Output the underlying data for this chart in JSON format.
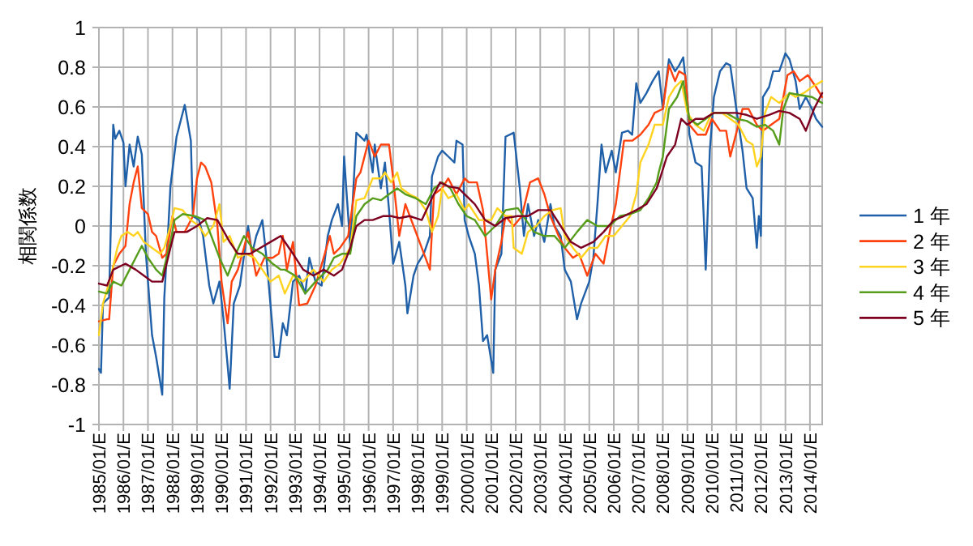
{
  "chart_data": {
    "type": "line",
    "ylabel": "相関係数",
    "xlim": [
      "1985-01",
      "2014-07"
    ],
    "ylim": [
      -1,
      1
    ],
    "yticks": [
      {
        "value": -1,
        "label": "-1"
      },
      {
        "value": -0.8,
        "label": "-0.8"
      },
      {
        "value": -0.6,
        "label": "-0.6"
      },
      {
        "value": -0.4,
        "label": "-0.4"
      },
      {
        "value": -0.2,
        "label": "-0.2"
      },
      {
        "value": 0,
        "label": "0"
      },
      {
        "value": 0.2,
        "label": "0.2"
      },
      {
        "value": 0.4,
        "label": "0.4"
      },
      {
        "value": 0.6,
        "label": "0.6"
      },
      {
        "value": 0.8,
        "label": "0.8"
      },
      {
        "value": 1,
        "label": "1"
      }
    ],
    "xticks": [
      {
        "value": "1985-01",
        "label": "1985/01/E"
      },
      {
        "value": "1986-01",
        "label": "1986/01/E"
      },
      {
        "value": "1987-01",
        "label": "1987/01/E"
      },
      {
        "value": "1988-01",
        "label": "1988/01/E"
      },
      {
        "value": "1989-01",
        "label": "1989/01/E"
      },
      {
        "value": "1990-01",
        "label": "1990/01/E"
      },
      {
        "value": "1991-01",
        "label": "1991/01/E"
      },
      {
        "value": "1992-01",
        "label": "1992/01/E"
      },
      {
        "value": "1993-01",
        "label": "1993/01/E"
      },
      {
        "value": "1994-01",
        "label": "1994/01/E"
      },
      {
        "value": "1995-01",
        "label": "1995/01/E"
      },
      {
        "value": "1996-01",
        "label": "1996/01/E"
      },
      {
        "value": "1997-01",
        "label": "1997/01/E"
      },
      {
        "value": "1998-01",
        "label": "1998/01/E"
      },
      {
        "value": "1999-01",
        "label": "1999/01/E"
      },
      {
        "value": "2000-01",
        "label": "2000/01/E"
      },
      {
        "value": "2001-01",
        "label": "2001/01/E"
      },
      {
        "value": "2002-01",
        "label": "2002/01/E"
      },
      {
        "value": "2003-01",
        "label": "2003/01/E"
      },
      {
        "value": "2004-01",
        "label": "2004/01/E"
      },
      {
        "value": "2005-01",
        "label": "2005/01/E"
      },
      {
        "value": "2006-01",
        "label": "2006/01/E"
      },
      {
        "value": "2007-01",
        "label": "2007/01/E"
      },
      {
        "value": "2008-01",
        "label": "2008/01/E"
      },
      {
        "value": "2009-01",
        "label": "2009/01/E"
      },
      {
        "value": "2010-01",
        "label": "2010/01/E"
      },
      {
        "value": "2011-01",
        "label": "2011/01/E"
      },
      {
        "value": "2012-01",
        "label": "2012/01/E"
      },
      {
        "value": "2013-01",
        "label": "2013/01/E"
      },
      {
        "value": "2014-01",
        "label": "2014/01/E"
      }
    ],
    "grid": true,
    "legend": "right",
    "marker": "none",
    "line_style": "solid",
    "series": [
      {
        "name": "1 年",
        "color": "#2060a8",
        "x": [
          "1985-01",
          "1985-02",
          "1985-03",
          "1985-06",
          "1985-08",
          "1985-09",
          "1985-11",
          "1986-01",
          "1986-02",
          "1986-04",
          "1986-06",
          "1986-08",
          "1986-10",
          "1986-12",
          "1987-03",
          "1987-05",
          "1987-08",
          "1987-09",
          "1987-11",
          "1987-12",
          "1988-03",
          "1988-07",
          "1988-10",
          "1988-11",
          "1989-02",
          "1989-04",
          "1989-07",
          "1989-09",
          "1989-12",
          "1990-02",
          "1990-05",
          "1990-07",
          "1990-10",
          "1991-02",
          "1991-04",
          "1991-06",
          "1991-09",
          "1991-11",
          "1992-02",
          "1992-03",
          "1992-05",
          "1992-07",
          "1992-09",
          "1992-12",
          "1993-03",
          "1993-06",
          "1993-08",
          "1993-11",
          "1994-02",
          "1994-05",
          "1994-07",
          "1994-10",
          "1994-12",
          "1995-01",
          "1995-03",
          "1995-04",
          "1995-07",
          "1995-11",
          "1995-12",
          "1996-03",
          "1996-04",
          "1996-07",
          "1996-09",
          "1996-11",
          "1997-01",
          "1997-04",
          "1997-07",
          "1997-08",
          "1997-11",
          "1998-01",
          "1998-04",
          "1998-07",
          "1998-08",
          "1998-11",
          "1999-01",
          "1999-04",
          "1999-07",
          "1999-08",
          "1999-11",
          "1999-12",
          "2000-02",
          "2000-05",
          "2000-07",
          "2000-09",
          "2000-11",
          "2001-02",
          "2001-03",
          "2001-06",
          "2001-08",
          "2001-12",
          "2002-03",
          "2002-05",
          "2002-07",
          "2002-10",
          "2002-12",
          "2003-03",
          "2003-06",
          "2003-08",
          "2003-11",
          "2004-01",
          "2004-04",
          "2004-07",
          "2004-09",
          "2005-01",
          "2005-03",
          "2005-05",
          "2005-07",
          "2005-09",
          "2005-12",
          "2006-02",
          "2006-05",
          "2006-08",
          "2006-10",
          "2006-12",
          "2007-02",
          "2007-05",
          "2007-08",
          "2007-11",
          "2008-01",
          "2008-04",
          "2008-07",
          "2008-09",
          "2008-11",
          "2009-01",
          "2009-02",
          "2009-05",
          "2009-08",
          "2009-09",
          "2009-10",
          "2009-12",
          "2010-02",
          "2010-05",
          "2010-08",
          "2010-10",
          "2011-01",
          "2011-04",
          "2011-06",
          "2011-09",
          "2011-11",
          "2011-12",
          "2012-01",
          "2012-02",
          "2012-05",
          "2012-07",
          "2012-10",
          "2013-01",
          "2013-03",
          "2013-06",
          "2013-08",
          "2013-11",
          "2014-02",
          "2014-04",
          "2014-07"
        ],
        "values": [
          -0.72,
          -0.74,
          -0.39,
          -0.36,
          0.51,
          0.44,
          0.48,
          0.42,
          0.2,
          0.41,
          0.3,
          0.45,
          0.36,
          -0.14,
          -0.55,
          -0.66,
          -0.85,
          -0.36,
          0.0,
          0.2,
          0.45,
          0.61,
          0.43,
          0.05,
          0.03,
          -0.05,
          -0.3,
          -0.39,
          -0.28,
          -0.47,
          -0.82,
          -0.39,
          -0.3,
          0.0,
          -0.14,
          -0.05,
          0.03,
          -0.16,
          -0.52,
          -0.66,
          -0.66,
          -0.49,
          -0.55,
          -0.28,
          -0.25,
          -0.34,
          -0.16,
          -0.28,
          -0.3,
          -0.05,
          0.03,
          0.11,
          0.0,
          0.35,
          0.05,
          -0.11,
          0.47,
          0.43,
          0.46,
          0.27,
          0.41,
          0.19,
          0.32,
          0.08,
          -0.19,
          -0.08,
          -0.3,
          -0.44,
          -0.25,
          -0.19,
          -0.14,
          -0.05,
          0.25,
          0.35,
          0.38,
          0.35,
          0.32,
          0.43,
          0.41,
          0.03,
          -0.05,
          -0.14,
          -0.3,
          -0.58,
          -0.55,
          -0.74,
          -0.22,
          -0.14,
          0.45,
          0.47,
          0.19,
          -0.05,
          0.11,
          -0.05,
          0.03,
          -0.08,
          0.11,
          0.0,
          -0.05,
          -0.22,
          -0.28,
          -0.47,
          -0.39,
          -0.28,
          -0.16,
          0.11,
          0.41,
          0.27,
          0.38,
          0.27,
          0.47,
          0.48,
          0.46,
          0.72,
          0.62,
          0.67,
          0.73,
          0.78,
          0.59,
          0.84,
          0.78,
          0.81,
          0.85,
          0.65,
          0.46,
          0.32,
          0.3,
          0.05,
          -0.22,
          0.38,
          0.65,
          0.78,
          0.82,
          0.81,
          0.59,
          0.38,
          0.19,
          0.14,
          -0.11,
          0.05,
          -0.05,
          0.65,
          0.7,
          0.78,
          0.78,
          0.87,
          0.84,
          0.73,
          0.59,
          0.65,
          0.59,
          0.54,
          0.5
        ]
      },
      {
        "name": "2 年",
        "color": "#ff420e",
        "x": [
          "1985-01",
          "1985-05",
          "1985-06",
          "1985-08",
          "1985-11",
          "1986-02",
          "1986-04",
          "1986-06",
          "1986-08",
          "1986-10",
          "1987-01",
          "1987-03",
          "1987-05",
          "1987-08",
          "1987-10",
          "1988-01",
          "1988-03",
          "1988-07",
          "1988-11",
          "1989-01",
          "1989-03",
          "1989-05",
          "1989-08",
          "1989-11",
          "1990-01",
          "1990-04",
          "1990-06",
          "1990-09",
          "1990-12",
          "1991-02",
          "1991-06",
          "1991-10",
          "1992-02",
          "1992-05",
          "1992-07",
          "1992-09",
          "1992-12",
          "1993-03",
          "1993-07",
          "1993-11",
          "1994-03",
          "1994-06",
          "1994-08",
          "1994-11",
          "1995-03",
          "1995-07",
          "1995-09",
          "1996-01",
          "1996-04",
          "1996-07",
          "1996-11",
          "1997-01",
          "1997-04",
          "1997-07",
          "1997-11",
          "1998-03",
          "1998-07",
          "1998-09",
          "1999-01",
          "1999-04",
          "1999-08",
          "1999-12",
          "2000-02",
          "2000-06",
          "2000-09",
          "2000-11",
          "2001-01",
          "2001-03",
          "2001-06",
          "2001-08",
          "2001-12",
          "2002-04",
          "2002-08",
          "2002-12",
          "2003-03",
          "2003-06",
          "2003-10",
          "2004-01",
          "2004-05",
          "2004-08",
          "2004-12",
          "2005-04",
          "2005-08",
          "2005-11",
          "2006-02",
          "2006-06",
          "2006-10",
          "2007-02",
          "2007-06",
          "2007-09",
          "2008-01",
          "2008-04",
          "2008-07",
          "2008-09",
          "2008-12",
          "2009-02",
          "2009-06",
          "2009-10",
          "2010-01",
          "2010-05",
          "2010-08",
          "2010-10",
          "2010-12",
          "2011-04",
          "2011-07",
          "2011-11",
          "2012-02",
          "2012-06",
          "2012-10",
          "2013-02",
          "2013-05",
          "2013-08",
          "2013-12",
          "2014-04",
          "2014-07"
        ],
        "values": [
          -0.48,
          -0.47,
          -0.47,
          -0.2,
          -0.14,
          -0.1,
          0.11,
          0.22,
          0.3,
          0.09,
          0.06,
          -0.03,
          -0.05,
          -0.16,
          -0.14,
          0.05,
          -0.03,
          -0.03,
          0.05,
          0.24,
          0.32,
          0.3,
          0.22,
          0.0,
          -0.28,
          -0.49,
          -0.28,
          -0.22,
          -0.11,
          -0.03,
          -0.25,
          -0.16,
          -0.16,
          -0.14,
          -0.05,
          -0.22,
          -0.08,
          -0.4,
          -0.39,
          -0.3,
          -0.16,
          -0.05,
          -0.14,
          -0.11,
          -0.05,
          0.24,
          0.27,
          0.43,
          0.35,
          0.41,
          0.41,
          0.24,
          -0.05,
          0.11,
          0.0,
          -0.11,
          -0.22,
          0.16,
          0.19,
          0.24,
          0.16,
          0.24,
          0.22,
          0.22,
          0.08,
          -0.14,
          -0.37,
          -0.22,
          -0.08,
          0.05,
          0.0,
          0.05,
          0.22,
          0.24,
          0.16,
          0.05,
          -0.05,
          -0.11,
          -0.16,
          -0.14,
          -0.25,
          -0.14,
          -0.19,
          -0.03,
          0.11,
          0.43,
          0.43,
          0.46,
          0.51,
          0.57,
          0.59,
          0.81,
          0.73,
          0.78,
          0.76,
          0.51,
          0.46,
          0.46,
          0.54,
          0.48,
          0.48,
          0.35,
          0.43,
          0.59,
          0.59,
          0.51,
          0.48,
          0.51,
          0.54,
          0.76,
          0.78,
          0.73,
          0.76,
          0.7,
          0.65
        ]
      },
      {
        "name": "3 年",
        "color": "#ffd320",
        "x": [
          "1985-01",
          "1985-03",
          "1985-07",
          "1985-10",
          "1985-12",
          "1986-03",
          "1986-06",
          "1986-08",
          "1986-11",
          "1987-03",
          "1987-07",
          "1987-09",
          "1987-12",
          "1988-02",
          "1988-06",
          "1988-10",
          "1989-02",
          "1989-05",
          "1989-09",
          "1989-12",
          "1990-02",
          "1990-05",
          "1990-09",
          "1991-01",
          "1991-05",
          "1991-09",
          "1992-01",
          "1992-05",
          "1992-08",
          "1992-12",
          "1993-05",
          "1993-10",
          "1994-03",
          "1994-07",
          "1994-11",
          "1995-04",
          "1995-07",
          "1995-11",
          "1996-03",
          "1996-07",
          "1996-09",
          "1996-12",
          "1997-03",
          "1997-05",
          "1997-09",
          "1998-01",
          "1998-05",
          "1998-08",
          "1998-11",
          "1999-01",
          "1999-04",
          "1999-08",
          "1999-12",
          "2000-02",
          "2000-07",
          "2001-01",
          "2001-04",
          "2001-08",
          "2001-11",
          "2001-12",
          "2002-04",
          "2002-07",
          "2002-11",
          "2003-03",
          "2003-07",
          "2003-11",
          "2004-01",
          "2004-05",
          "2004-09",
          "2005-01",
          "2005-05",
          "2005-09",
          "2006-01",
          "2006-05",
          "2006-09",
          "2006-12",
          "2007-02",
          "2007-06",
          "2007-09",
          "2008-01",
          "2008-04",
          "2008-07",
          "2008-10",
          "2009-01",
          "2009-05",
          "2009-09",
          "2010-01",
          "2010-06",
          "2010-10",
          "2011-02",
          "2011-06",
          "2011-09",
          "2011-11",
          "2012-01",
          "2012-03",
          "2012-06",
          "2012-10",
          "2013-03",
          "2013-06",
          "2013-10",
          "2014-02",
          "2014-07"
        ],
        "values": [
          -0.55,
          -0.39,
          -0.25,
          -0.11,
          -0.05,
          -0.03,
          -0.05,
          -0.03,
          -0.08,
          -0.11,
          -0.14,
          -0.11,
          0.0,
          0.09,
          0.08,
          0.03,
          0.0,
          -0.05,
          0.0,
          0.11,
          -0.08,
          -0.05,
          -0.16,
          -0.14,
          -0.16,
          -0.22,
          -0.28,
          -0.25,
          -0.34,
          -0.25,
          -0.28,
          -0.22,
          -0.28,
          -0.22,
          -0.19,
          -0.11,
          0.13,
          0.14,
          0.24,
          0.24,
          0.27,
          0.22,
          0.27,
          0.19,
          0.16,
          0.14,
          0.08,
          -0.03,
          0.05,
          0.19,
          0.14,
          0.16,
          0.08,
          0.11,
          0.03,
          0.03,
          0.09,
          0.05,
          0.05,
          -0.11,
          -0.14,
          -0.03,
          0.0,
          0.05,
          0.08,
          0.09,
          -0.05,
          -0.11,
          -0.16,
          -0.11,
          -0.11,
          -0.05,
          -0.05,
          0.0,
          0.05,
          0.16,
          0.32,
          0.41,
          0.51,
          0.51,
          0.65,
          0.7,
          0.73,
          0.57,
          0.51,
          0.48,
          0.57,
          0.57,
          0.54,
          0.51,
          0.43,
          0.41,
          0.3,
          0.35,
          0.57,
          0.65,
          0.62,
          0.67,
          0.65,
          0.67,
          0.7,
          0.73
        ]
      },
      {
        "name": "4 年",
        "color": "#579d1c",
        "x": [
          "1985-01",
          "1985-05",
          "1985-08",
          "1985-12",
          "1986-04",
          "1986-08",
          "1986-10",
          "1987-01",
          "1987-05",
          "1987-08",
          "1987-12",
          "1988-02",
          "1988-06",
          "1988-12",
          "1989-05",
          "1989-08",
          "1989-12",
          "1990-04",
          "1990-08",
          "1990-12",
          "1991-04",
          "1991-09",
          "1992-02",
          "1992-06",
          "1992-08",
          "1993-01",
          "1993-06",
          "1993-11",
          "1994-05",
          "1994-08",
          "1994-12",
          "1995-04",
          "1995-07",
          "1995-11",
          "1996-03",
          "1996-07",
          "1996-11",
          "1997-03",
          "1997-07",
          "1997-12",
          "1998-05",
          "1998-09",
          "1999-01",
          "1999-05",
          "1999-09",
          "2000-01",
          "2000-05",
          "2000-10",
          "2001-03",
          "2001-08",
          "2002-02",
          "2002-06",
          "2002-10",
          "2003-03",
          "2003-08",
          "2004-01",
          "2004-07",
          "2004-12",
          "2005-05",
          "2005-11",
          "2006-04",
          "2006-09",
          "2007-02",
          "2007-06",
          "2007-10",
          "2007-11",
          "2008-01",
          "2008-04",
          "2008-08",
          "2008-11",
          "2009-02",
          "2009-06",
          "2009-10",
          "2010-02",
          "2010-08",
          "2011-01",
          "2011-06",
          "2011-11",
          "2012-03",
          "2012-07",
          "2012-10",
          "2012-12",
          "2013-03",
          "2013-08",
          "2014-02",
          "2014-07"
        ],
        "values": [
          -0.33,
          -0.34,
          -0.28,
          -0.3,
          -0.22,
          -0.14,
          -0.1,
          -0.16,
          -0.22,
          -0.25,
          -0.08,
          0.03,
          0.06,
          0.05,
          0.03,
          -0.05,
          -0.16,
          -0.25,
          -0.14,
          -0.05,
          -0.11,
          -0.14,
          -0.19,
          -0.22,
          -0.22,
          -0.25,
          -0.34,
          -0.28,
          -0.22,
          -0.16,
          -0.14,
          -0.14,
          0.05,
          0.11,
          0.14,
          0.13,
          0.16,
          0.19,
          0.16,
          0.14,
          0.11,
          0.19,
          0.22,
          0.19,
          0.11,
          0.05,
          0.03,
          -0.05,
          0.0,
          0.08,
          0.09,
          0.03,
          -0.03,
          -0.05,
          -0.05,
          -0.11,
          -0.03,
          0.03,
          0.0,
          0.0,
          0.05,
          0.06,
          0.08,
          0.14,
          0.22,
          0.27,
          0.35,
          0.59,
          0.65,
          0.73,
          0.54,
          0.51,
          0.54,
          0.57,
          0.57,
          0.54,
          0.53,
          0.5,
          0.51,
          0.48,
          0.41,
          0.59,
          0.67,
          0.66,
          0.65,
          0.62
        ]
      },
      {
        "name": "5 年",
        "color": "#7e0021",
        "x": [
          "1985-01",
          "1985-05",
          "1985-08",
          "1986-02",
          "1986-07",
          "1986-11",
          "1987-03",
          "1987-08",
          "1987-12",
          "1988-02",
          "1988-08",
          "1989-01",
          "1989-06",
          "1989-11",
          "1990-05",
          "1990-09",
          "1991-03",
          "1991-08",
          "1992-01",
          "1992-06",
          "1992-12",
          "1993-05",
          "1993-10",
          "1994-03",
          "1994-08",
          "1994-12",
          "1995-04",
          "1995-07",
          "1995-11",
          "1996-03",
          "1996-08",
          "1996-12",
          "1997-04",
          "1997-09",
          "1998-03",
          "1998-08",
          "1998-12",
          "1999-04",
          "1999-09",
          "2000-02",
          "2000-05",
          "2000-10",
          "2001-03",
          "2001-08",
          "2002-02",
          "2002-07",
          "2002-12",
          "2003-06",
          "2003-11",
          "2004-04",
          "2004-09",
          "2005-03",
          "2005-08",
          "2006-01",
          "2006-06",
          "2006-12",
          "2007-05",
          "2007-10",
          "2007-11",
          "2008-03",
          "2008-07",
          "2008-10",
          "2009-01",
          "2009-05",
          "2009-09",
          "2010-02",
          "2010-08",
          "2011-01",
          "2011-06",
          "2011-11",
          "2012-05",
          "2012-10",
          "2013-03",
          "2013-08",
          "2013-11",
          "2014-03",
          "2014-07"
        ],
        "values": [
          -0.29,
          -0.3,
          -0.22,
          -0.19,
          -0.22,
          -0.25,
          -0.28,
          -0.28,
          -0.11,
          -0.03,
          -0.03,
          0.0,
          0.04,
          0.03,
          -0.08,
          -0.14,
          -0.14,
          -0.11,
          -0.08,
          -0.05,
          -0.14,
          -0.22,
          -0.25,
          -0.22,
          -0.25,
          -0.22,
          -0.11,
          0.0,
          0.03,
          0.03,
          0.05,
          0.05,
          0.04,
          0.05,
          0.03,
          0.14,
          0.22,
          0.2,
          0.19,
          0.14,
          0.11,
          0.03,
          0.0,
          0.04,
          0.05,
          0.05,
          0.08,
          0.08,
          0.0,
          -0.08,
          -0.11,
          -0.08,
          -0.03,
          0.03,
          0.05,
          0.08,
          0.11,
          0.19,
          0.22,
          0.35,
          0.41,
          0.54,
          0.51,
          0.54,
          0.54,
          0.57,
          0.57,
          0.57,
          0.56,
          0.54,
          0.56,
          0.58,
          0.57,
          0.54,
          0.48,
          0.59,
          0.67
        ]
      }
    ]
  }
}
